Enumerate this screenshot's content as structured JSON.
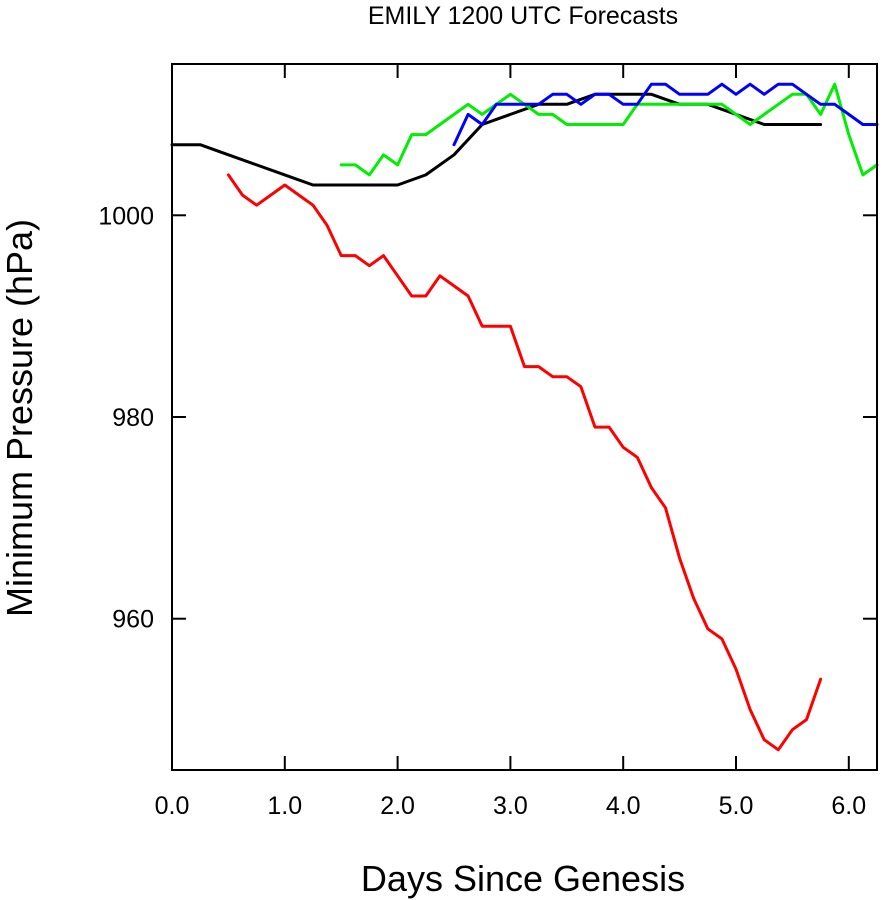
{
  "chart_data": {
    "type": "line",
    "title": "EMILY 1200 UTC Forecasts",
    "xlabel": "Days Since Genesis",
    "ylabel": "Minimum Pressure (hPa)",
    "xlim": [
      0,
      6.25
    ],
    "ylim": [
      945,
      1015
    ],
    "x_ticks": [
      {
        "value": 0,
        "label": "0.0"
      },
      {
        "value": 1,
        "label": "1.0"
      },
      {
        "value": 2,
        "label": "2.0"
      },
      {
        "value": 3,
        "label": "3.0"
      },
      {
        "value": 4,
        "label": "4.0"
      },
      {
        "value": 5,
        "label": "5.0"
      },
      {
        "value": 6,
        "label": "6.0"
      }
    ],
    "y_ticks": [
      {
        "value": 960,
        "label": "960"
      },
      {
        "value": 980,
        "label": "980"
      },
      {
        "value": 1000,
        "label": "1000"
      }
    ],
    "grid": false,
    "series": [
      {
        "color": "#000000",
        "points": [
          [
            0,
            1007
          ],
          [
            0.25,
            1007
          ],
          [
            0.5,
            1006
          ],
          [
            0.75,
            1005
          ],
          [
            1,
            1004
          ],
          [
            1.25,
            1003
          ],
          [
            1.5,
            1003
          ],
          [
            1.75,
            1003
          ],
          [
            2,
            1003
          ],
          [
            2.25,
            1004
          ],
          [
            2.5,
            1006
          ],
          [
            2.75,
            1009
          ],
          [
            3,
            1010
          ],
          [
            3.25,
            1011
          ],
          [
            3.5,
            1011
          ],
          [
            3.75,
            1012
          ],
          [
            4,
            1012
          ],
          [
            4.25,
            1012
          ],
          [
            4.5,
            1011
          ],
          [
            4.75,
            1011
          ],
          [
            5,
            1010
          ],
          [
            5.25,
            1009
          ],
          [
            5.5,
            1009
          ],
          [
            5.75,
            1009
          ]
        ]
      },
      {
        "color": "#ff0000",
        "points": [
          [
            0.5,
            1004
          ],
          [
            0.625,
            1002
          ],
          [
            0.75,
            1001
          ],
          [
            0.875,
            1002
          ],
          [
            1,
            1003
          ],
          [
            1.125,
            1002
          ],
          [
            1.25,
            1001
          ],
          [
            1.375,
            999
          ],
          [
            1.5,
            996
          ],
          [
            1.625,
            996
          ],
          [
            1.75,
            995
          ],
          [
            1.875,
            996
          ],
          [
            2,
            994
          ],
          [
            2.125,
            992
          ],
          [
            2.25,
            992
          ],
          [
            2.375,
            994
          ],
          [
            2.5,
            993
          ],
          [
            2.625,
            992
          ],
          [
            2.75,
            989
          ],
          [
            2.875,
            989
          ],
          [
            3,
            989
          ],
          [
            3.125,
            985
          ],
          [
            3.25,
            985
          ],
          [
            3.375,
            984
          ],
          [
            3.5,
            984
          ],
          [
            3.625,
            983
          ],
          [
            3.75,
            979
          ],
          [
            3.875,
            979
          ],
          [
            4,
            977
          ],
          [
            4.125,
            976
          ],
          [
            4.25,
            973
          ],
          [
            4.375,
            971
          ],
          [
            4.5,
            966
          ],
          [
            4.625,
            962
          ],
          [
            4.75,
            959
          ],
          [
            4.875,
            958
          ],
          [
            5,
            955
          ],
          [
            5.125,
            951
          ],
          [
            5.25,
            948
          ],
          [
            5.375,
            947
          ],
          [
            5.5,
            949
          ],
          [
            5.625,
            950
          ],
          [
            5.75,
            954
          ]
        ]
      },
      {
        "color": "#00ee00",
        "points": [
          [
            1.5,
            1005
          ],
          [
            1.625,
            1005
          ],
          [
            1.75,
            1004
          ],
          [
            1.875,
            1006
          ],
          [
            2,
            1005
          ],
          [
            2.125,
            1008
          ],
          [
            2.25,
            1008
          ],
          [
            2.375,
            1009
          ],
          [
            2.5,
            1010
          ],
          [
            2.625,
            1011
          ],
          [
            2.75,
            1010
          ],
          [
            2.875,
            1011
          ],
          [
            3,
            1012
          ],
          [
            3.125,
            1011
          ],
          [
            3.25,
            1010
          ],
          [
            3.375,
            1010
          ],
          [
            3.5,
            1009
          ],
          [
            3.625,
            1009
          ],
          [
            3.75,
            1009
          ],
          [
            3.875,
            1009
          ],
          [
            4,
            1009
          ],
          [
            4.125,
            1011
          ],
          [
            4.25,
            1011
          ],
          [
            4.375,
            1011
          ],
          [
            4.5,
            1011
          ],
          [
            4.625,
            1011
          ],
          [
            4.75,
            1011
          ],
          [
            4.875,
            1011
          ],
          [
            5,
            1010
          ],
          [
            5.125,
            1009
          ],
          [
            5.25,
            1010
          ],
          [
            5.375,
            1011
          ],
          [
            5.5,
            1012
          ],
          [
            5.625,
            1012
          ],
          [
            5.75,
            1010
          ],
          [
            5.875,
            1013
          ],
          [
            6,
            1008
          ],
          [
            6.125,
            1004
          ],
          [
            6.25,
            1005
          ]
        ]
      },
      {
        "color": "#0000ff",
        "points": [
          [
            2.5,
            1007
          ],
          [
            2.625,
            1010
          ],
          [
            2.75,
            1009
          ],
          [
            2.875,
            1011
          ],
          [
            3,
            1011
          ],
          [
            3.125,
            1011
          ],
          [
            3.25,
            1011
          ],
          [
            3.375,
            1012
          ],
          [
            3.5,
            1012
          ],
          [
            3.625,
            1011
          ],
          [
            3.75,
            1012
          ],
          [
            3.875,
            1012
          ],
          [
            4,
            1011
          ],
          [
            4.125,
            1011
          ],
          [
            4.25,
            1013
          ],
          [
            4.375,
            1013
          ],
          [
            4.5,
            1012
          ],
          [
            4.625,
            1012
          ],
          [
            4.75,
            1012
          ],
          [
            4.875,
            1013
          ],
          [
            5,
            1012
          ],
          [
            5.125,
            1013
          ],
          [
            5.25,
            1012
          ],
          [
            5.375,
            1013
          ],
          [
            5.5,
            1013
          ],
          [
            5.625,
            1012
          ],
          [
            5.75,
            1011
          ],
          [
            5.875,
            1011
          ],
          [
            6,
            1010
          ],
          [
            6.125,
            1009
          ],
          [
            6.25,
            1009
          ]
        ]
      }
    ]
  }
}
